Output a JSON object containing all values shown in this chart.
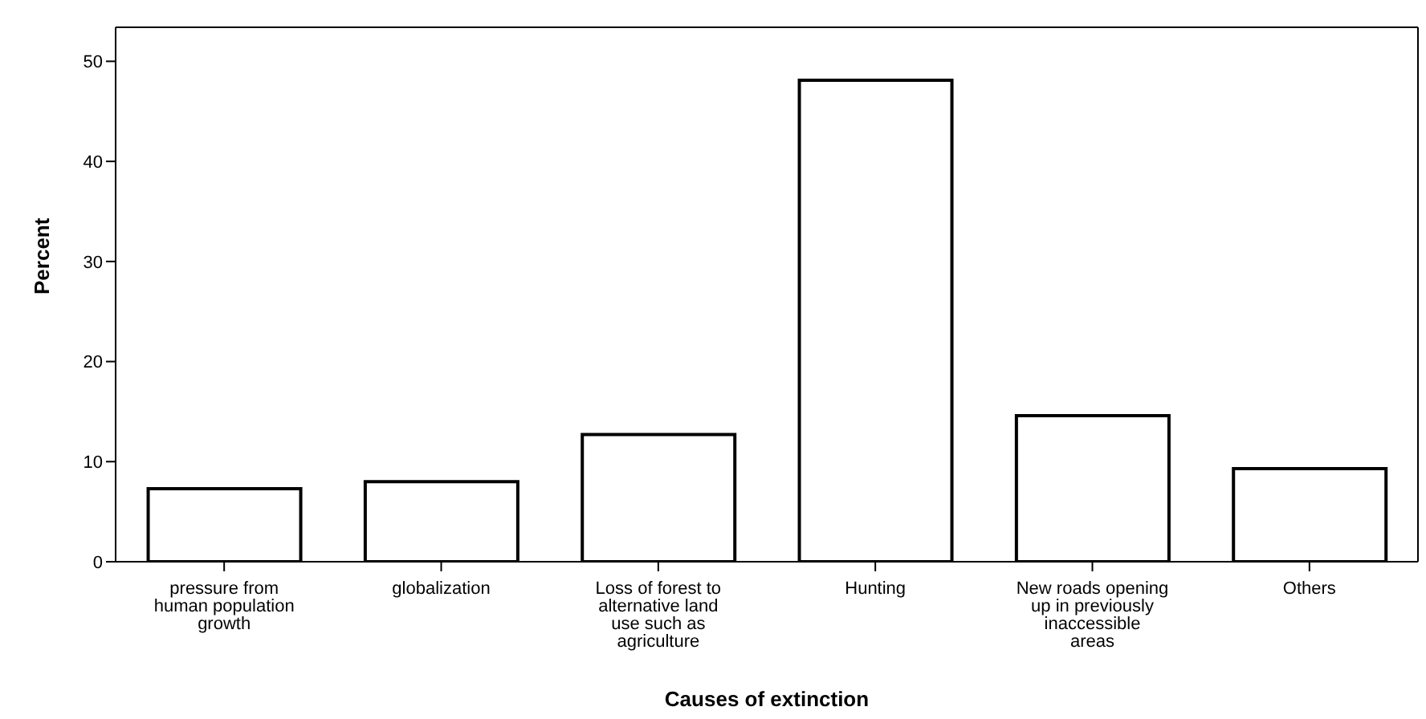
{
  "chart_data": {
    "type": "bar",
    "xlabel": "Causes of extinction",
    "ylabel": "Percent",
    "categories": [
      "pressure from human population growth",
      "globalization",
      "Loss of forest to alternative land use such as agriculture",
      "Hunting",
      "New roads opening up in previously inaccessible areas",
      "Others"
    ],
    "values": [
      7.3,
      8.0,
      12.7,
      48.1,
      14.6,
      9.3
    ],
    "color": "#ffffff",
    "ylim": [
      0,
      53.4
    ],
    "yticks": [
      0,
      10,
      20,
      30,
      40,
      50
    ],
    "grid": false,
    "legend": false
  }
}
